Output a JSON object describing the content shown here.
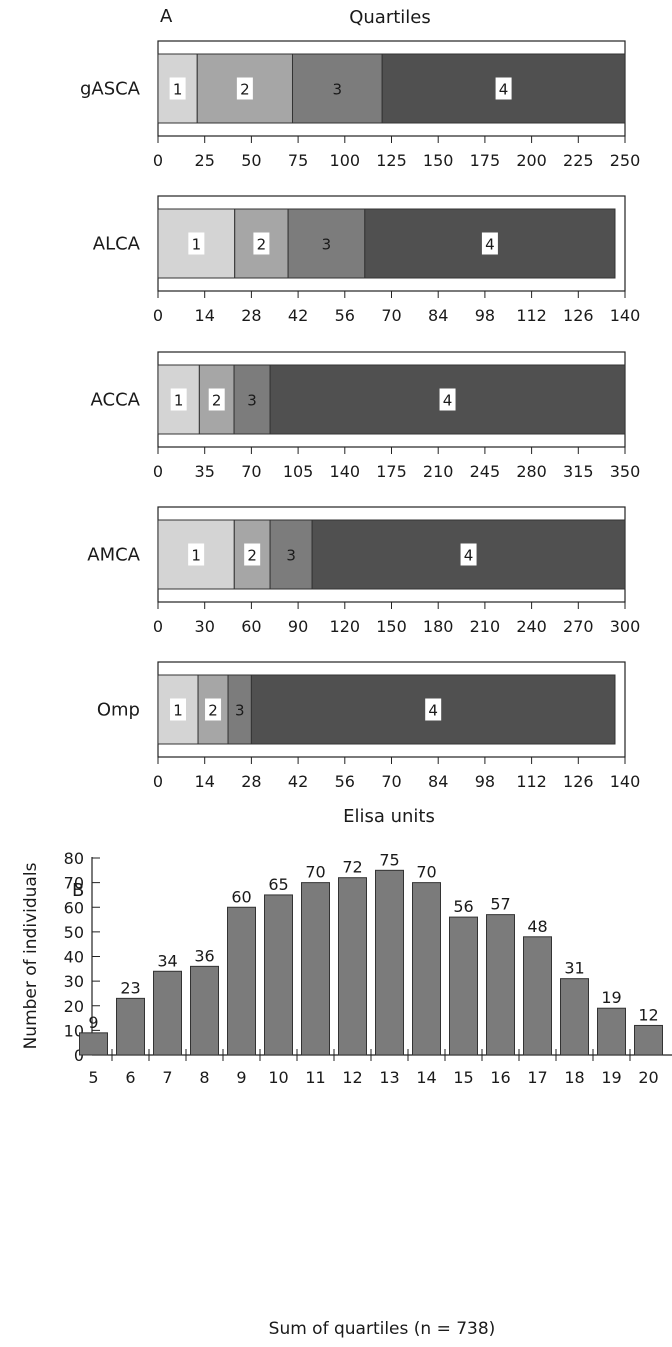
{
  "panel_a": {
    "letter": "A",
    "title": "Quartiles",
    "xlabel": "Elisa units"
  },
  "panel_b": {
    "letter": "B"
  },
  "chart_data": [
    {
      "type": "bar",
      "orientation": "horizontal",
      "stacked": true,
      "label": "gASCA",
      "xlim": [
        0,
        250
      ],
      "ticks": [
        0,
        25,
        50,
        75,
        100,
        125,
        150,
        175,
        200,
        225,
        250
      ],
      "segments": [
        {
          "name": "1",
          "start": 0,
          "end": 21,
          "color": "#d4d4d4"
        },
        {
          "name": "2",
          "start": 21,
          "end": 72,
          "color": "#a6a6a6"
        },
        {
          "name": "3",
          "start": 72,
          "end": 120,
          "color": "#7c7c7c"
        },
        {
          "name": "4",
          "start": 120,
          "end": 250,
          "color": "#505050"
        }
      ]
    },
    {
      "type": "bar",
      "orientation": "horizontal",
      "stacked": true,
      "label": "ALCA",
      "xlim": [
        0,
        140
      ],
      "ticks": [
        0,
        14,
        28,
        42,
        56,
        70,
        84,
        98,
        112,
        126,
        140
      ],
      "segments": [
        {
          "name": "1",
          "start": 0,
          "end": 23,
          "color": "#d4d4d4"
        },
        {
          "name": "2",
          "start": 23,
          "end": 39,
          "color": "#a6a6a6"
        },
        {
          "name": "3",
          "start": 39,
          "end": 62,
          "color": "#7c7c7c"
        },
        {
          "name": "4",
          "start": 62,
          "end": 137,
          "color": "#505050"
        }
      ]
    },
    {
      "type": "bar",
      "orientation": "horizontal",
      "stacked": true,
      "label": "ACCA",
      "xlim": [
        0,
        350
      ],
      "ticks": [
        0,
        35,
        70,
        105,
        140,
        175,
        210,
        245,
        280,
        315,
        350
      ],
      "segments": [
        {
          "name": "1",
          "start": 0,
          "end": 31,
          "color": "#d4d4d4"
        },
        {
          "name": "2",
          "start": 31,
          "end": 57,
          "color": "#a6a6a6"
        },
        {
          "name": "3",
          "start": 57,
          "end": 84,
          "color": "#7c7c7c"
        },
        {
          "name": "4",
          "start": 84,
          "end": 350,
          "color": "#505050"
        }
      ]
    },
    {
      "type": "bar",
      "orientation": "horizontal",
      "stacked": true,
      "label": "AMCA",
      "xlim": [
        0,
        300
      ],
      "ticks": [
        0,
        30,
        60,
        90,
        120,
        150,
        180,
        210,
        240,
        270,
        300
      ],
      "segments": [
        {
          "name": "1",
          "start": 0,
          "end": 49,
          "color": "#d4d4d4"
        },
        {
          "name": "2",
          "start": 49,
          "end": 72,
          "color": "#a6a6a6"
        },
        {
          "name": "3",
          "start": 72,
          "end": 99,
          "color": "#7c7c7c"
        },
        {
          "name": "4",
          "start": 99,
          "end": 300,
          "color": "#505050"
        }
      ]
    },
    {
      "type": "bar",
      "orientation": "horizontal",
      "stacked": true,
      "label": "Omp",
      "xlim": [
        0,
        140
      ],
      "ticks": [
        0,
        14,
        28,
        42,
        56,
        70,
        84,
        98,
        112,
        126,
        140
      ],
      "segments": [
        {
          "name": "1",
          "start": 0,
          "end": 12,
          "color": "#d4d4d4"
        },
        {
          "name": "2",
          "start": 12,
          "end": 21,
          "color": "#a6a6a6"
        },
        {
          "name": "3",
          "start": 21,
          "end": 28,
          "color": "#7c7c7c"
        },
        {
          "name": "4",
          "start": 28,
          "end": 137,
          "color": "#505050"
        }
      ]
    },
    {
      "type": "bar",
      "categories": [
        "5",
        "6",
        "7",
        "8",
        "9",
        "10",
        "11",
        "12",
        "13",
        "14",
        "15",
        "16",
        "17",
        "18",
        "19",
        "20"
      ],
      "values": [
        9,
        23,
        34,
        36,
        60,
        65,
        70,
        72,
        75,
        70,
        56,
        57,
        48,
        31,
        19,
        12
      ],
      "xlabel": "Sum of quartiles (n = 738)",
      "ylabel": "Number of individuals",
      "ylim": [
        0,
        80
      ],
      "yticks": [
        0,
        10,
        20,
        30,
        40,
        50,
        60,
        70,
        80
      ],
      "bar_color": "#7b7b7b",
      "grid": false
    }
  ]
}
